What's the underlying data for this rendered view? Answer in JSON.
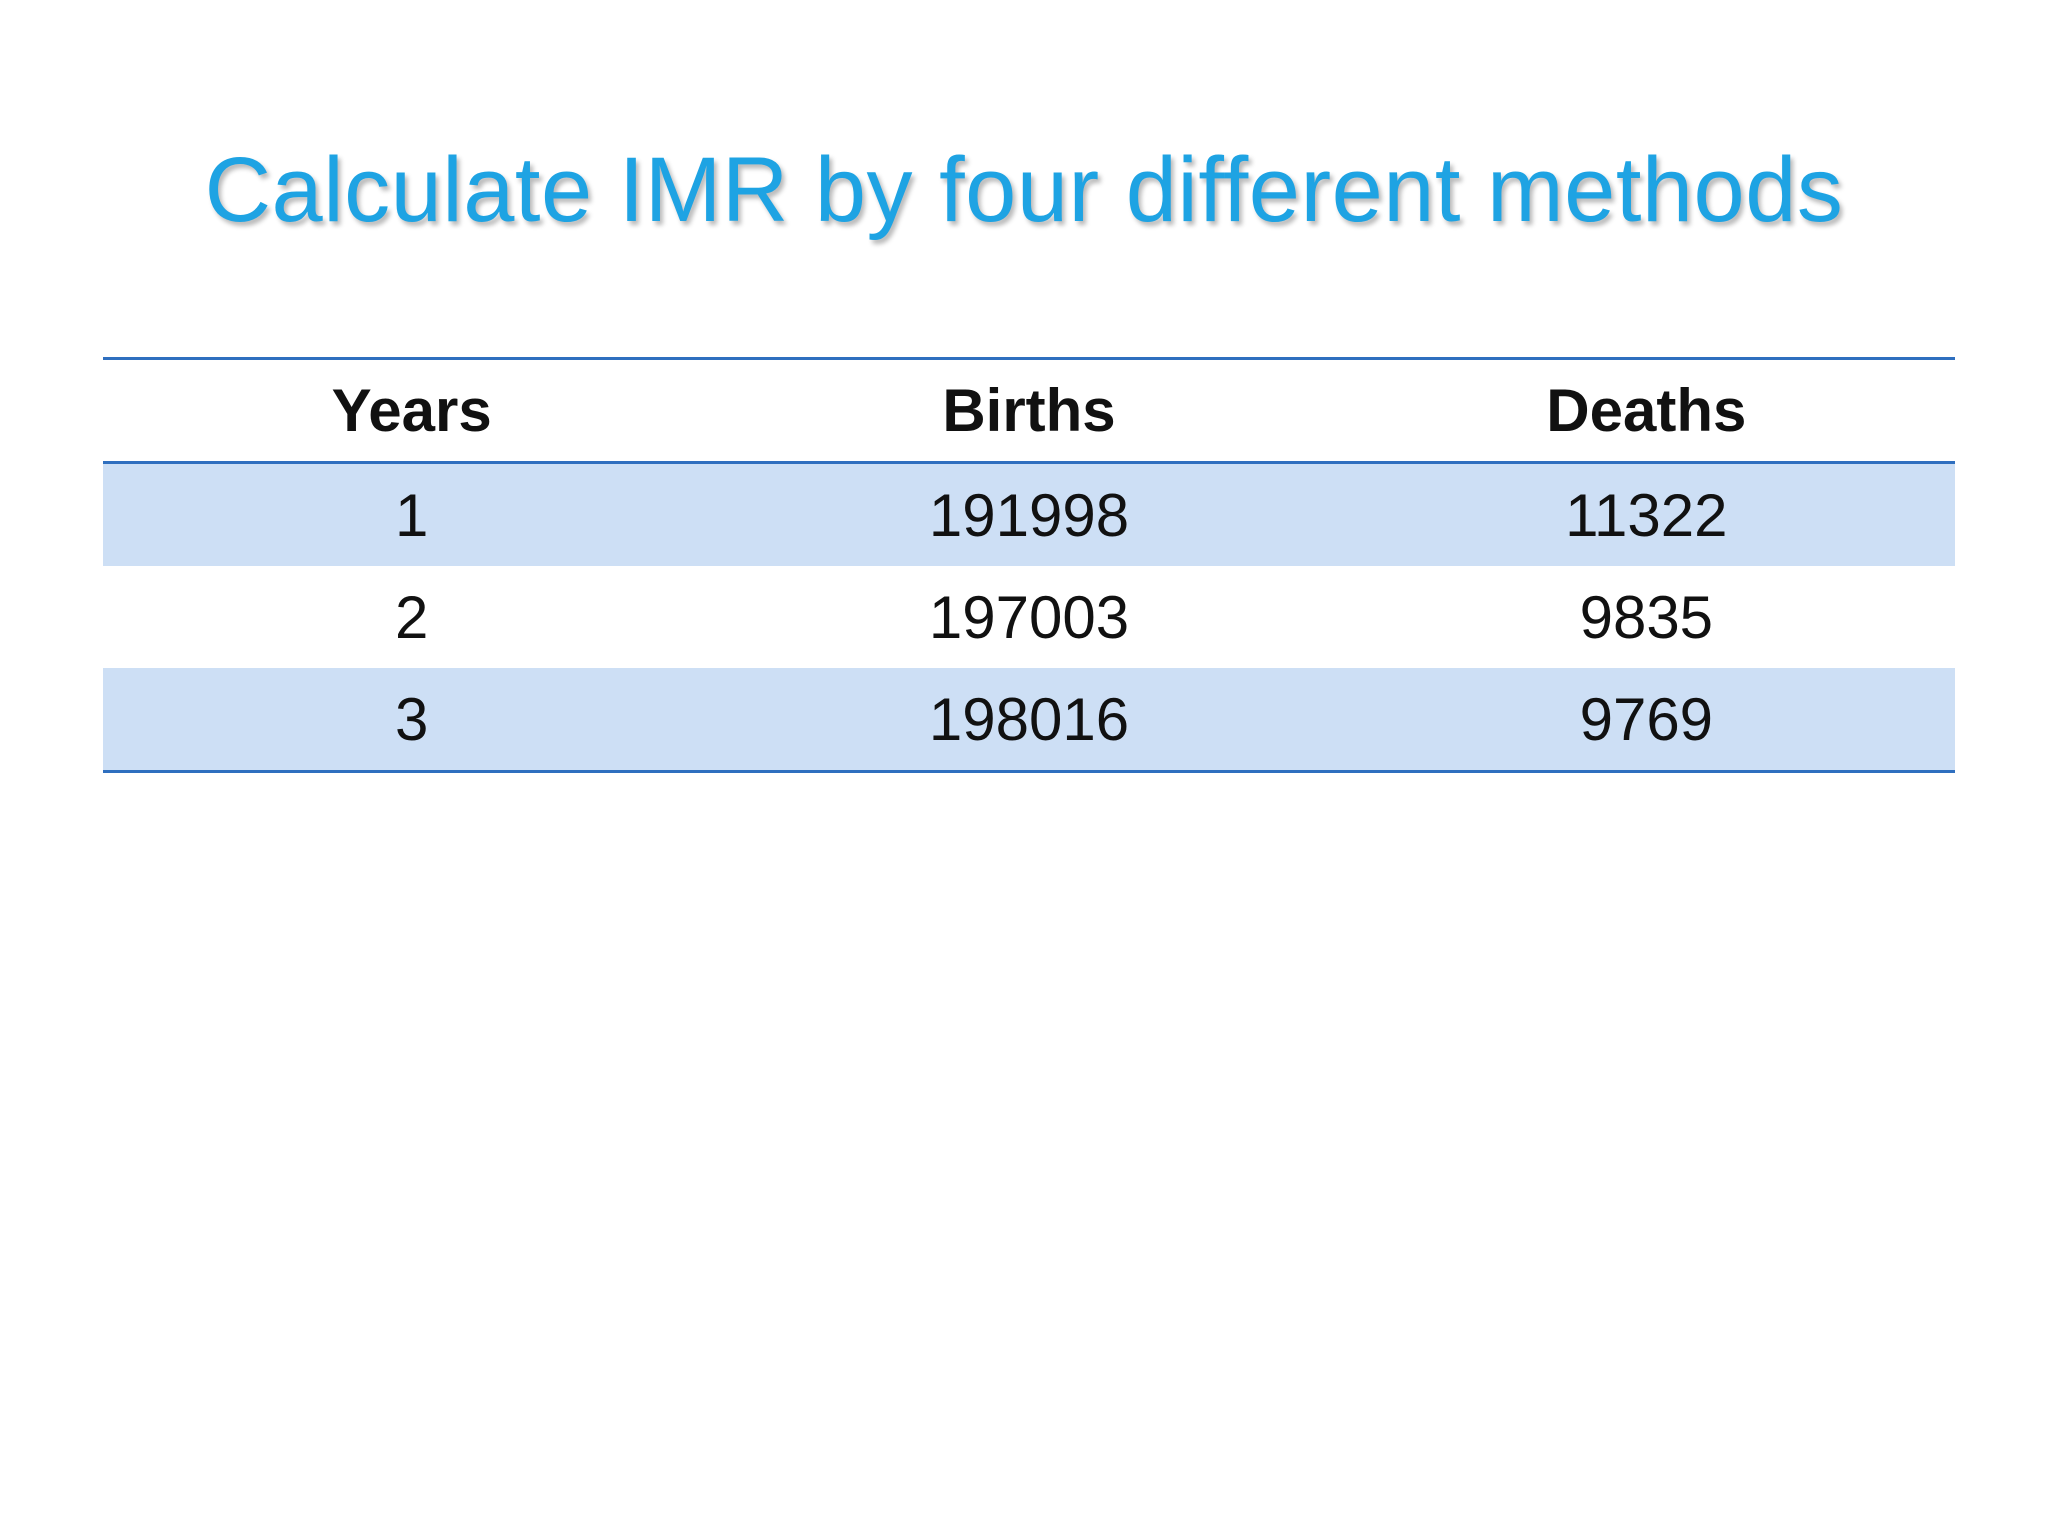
{
  "slide": {
    "title": "Calculate IMR by four different methods"
  },
  "table": {
    "headers": [
      "Years",
      "Births",
      "Deaths"
    ],
    "rows": [
      [
        "1",
        "191998",
        "11322"
      ],
      [
        "2",
        "197003",
        "9835"
      ],
      [
        "3",
        "198016",
        "9769"
      ]
    ]
  },
  "colors": {
    "title": "#1ea3e3",
    "row_shade": "#cddff5",
    "rule": "#2f6fbf"
  }
}
